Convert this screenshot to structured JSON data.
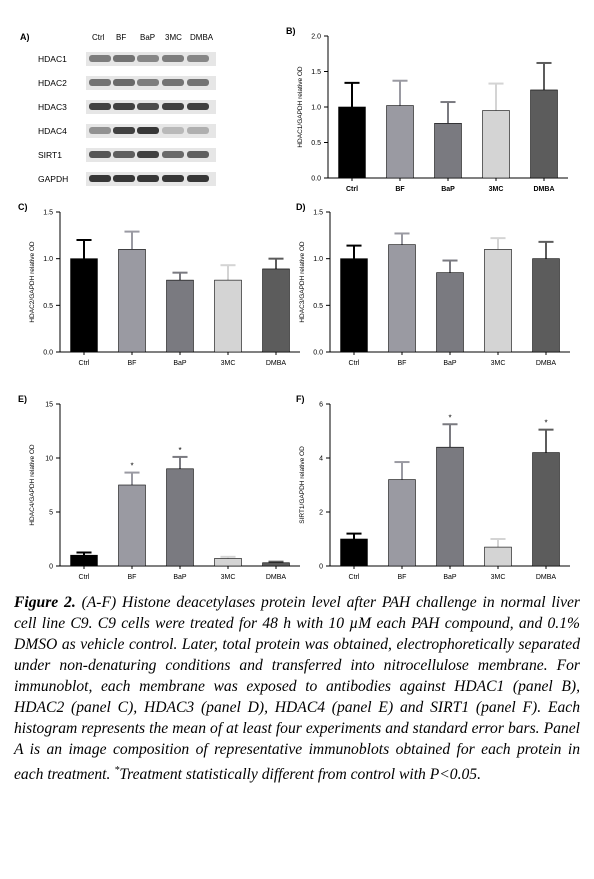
{
  "panel_a": {
    "letter": "A)",
    "lanes": [
      "Ctrl",
      "BF",
      "BaP",
      "3MC",
      "DMBA"
    ],
    "rows": [
      {
        "label": "HDAC1",
        "intensity": [
          0.55,
          0.6,
          0.5,
          0.55,
          0.5
        ]
      },
      {
        "label": "HDAC2",
        "intensity": [
          0.6,
          0.65,
          0.55,
          0.6,
          0.6
        ]
      },
      {
        "label": "HDAC3",
        "intensity": [
          0.85,
          0.85,
          0.8,
          0.85,
          0.85
        ]
      },
      {
        "label": "HDAC4",
        "intensity": [
          0.45,
          0.85,
          0.9,
          0.25,
          0.3
        ]
      },
      {
        "label": "SIRT1",
        "intensity": [
          0.75,
          0.7,
          0.85,
          0.65,
          0.7
        ]
      },
      {
        "label": "GAPDH",
        "intensity": [
          0.9,
          0.9,
          0.9,
          0.9,
          0.9
        ]
      }
    ]
  },
  "chart_data": [
    {
      "panel": "B)",
      "type": "bar",
      "ylabel": "HDAC1/GAPDH relative OD",
      "categories": [
        "Ctrl",
        "BF",
        "BaP",
        "3MC",
        "DMBA"
      ],
      "values": [
        1.0,
        1.02,
        0.77,
        0.95,
        1.24
      ],
      "errors": [
        0.34,
        0.35,
        0.3,
        0.38,
        0.38
      ],
      "significant": [
        false,
        false,
        false,
        false,
        false
      ],
      "ylim": [
        0,
        2.0
      ],
      "yticks": [
        "0.0",
        "0.5",
        "1.0",
        "1.5",
        "2.0"
      ],
      "bold_categories": true
    },
    {
      "panel": "C)",
      "type": "bar",
      "ylabel": "HDAC2/GAPDH relative OD",
      "categories": [
        "Ctrl",
        "BF",
        "BaP",
        "3MC",
        "DMBA"
      ],
      "values": [
        1.0,
        1.1,
        0.77,
        0.77,
        0.89
      ],
      "errors": [
        0.2,
        0.19,
        0.08,
        0.16,
        0.11
      ],
      "significant": [
        false,
        false,
        false,
        false,
        false
      ],
      "ylim": [
        0,
        1.5
      ],
      "yticks": [
        "0.0",
        "0.5",
        "1.0",
        "1.5"
      ],
      "bold_categories": false
    },
    {
      "panel": "D)",
      "type": "bar",
      "ylabel": "HDAC3/GAPDH relative OD",
      "categories": [
        "Ctrl",
        "BF",
        "BaP",
        "3MC",
        "DMBA"
      ],
      "values": [
        1.0,
        1.15,
        0.85,
        1.1,
        1.0
      ],
      "errors": [
        0.14,
        0.12,
        0.13,
        0.12,
        0.18
      ],
      "significant": [
        false,
        false,
        false,
        false,
        false
      ],
      "ylim": [
        0,
        1.5
      ],
      "yticks": [
        "0.0",
        "0.5",
        "1.0",
        "1.5"
      ],
      "bold_categories": false
    },
    {
      "panel": "E)",
      "type": "bar",
      "ylabel": "HDAC4/GAPDH relative OD",
      "categories": [
        "Ctrl",
        "BF",
        "BaP",
        "3MC",
        "DMBA"
      ],
      "values": [
        1.0,
        7.5,
        9.0,
        0.7,
        0.3
      ],
      "errors": [
        0.25,
        1.15,
        1.1,
        0.15,
        0.1
      ],
      "significant": [
        false,
        true,
        true,
        false,
        false
      ],
      "ylim": [
        0,
        15
      ],
      "yticks": [
        "0",
        "5",
        "10",
        "15"
      ],
      "bold_categories": false
    },
    {
      "panel": "F)",
      "type": "bar",
      "ylabel": "SIRT1/GAPDH relative OD",
      "categories": [
        "Ctrl",
        "BF",
        "BaP",
        "3MC",
        "DMBA"
      ],
      "values": [
        1.0,
        3.2,
        4.4,
        0.7,
        4.2
      ],
      "errors": [
        0.2,
        0.65,
        0.85,
        0.3,
        0.85
      ],
      "significant": [
        false,
        false,
        true,
        false,
        true
      ],
      "ylim": [
        0,
        6
      ],
      "yticks": [
        "0",
        "2",
        "4",
        "6"
      ],
      "bold_categories": false
    }
  ],
  "bar_colors": [
    "#000000",
    "#9a9aa2",
    "#7a7a80",
    "#d4d4d4",
    "#5c5c5c"
  ],
  "significance_mark": "*",
  "caption": {
    "figure_label": "Figure 2.",
    "text_before": " (A-F) Histone deacetylases protein level after PAH challenge in normal liver cell line C9. C9 cells were treated for 48 h with 10 µM each PAH compound, and 0.1% DMSO as vehicle control. Later, total protein was obtained, electrophoretically separated under non-denaturing conditions and transferred into nitrocellulose membrane. For immunoblot, each membrane was exposed to antibodies against HDAC1 (panel B), HDAC2 (panel C), HDAC3 (panel D), HDAC4 (panel E) and SIRT1 (panel F). Each histogram represents the mean of at least four experiments and standard error bars. Panel A is an image composition of representative immunoblots obtained for each protein in each treatment. ",
    "superscript": "*",
    "text_after": "Treatment statistically different from control with P<0.05."
  }
}
